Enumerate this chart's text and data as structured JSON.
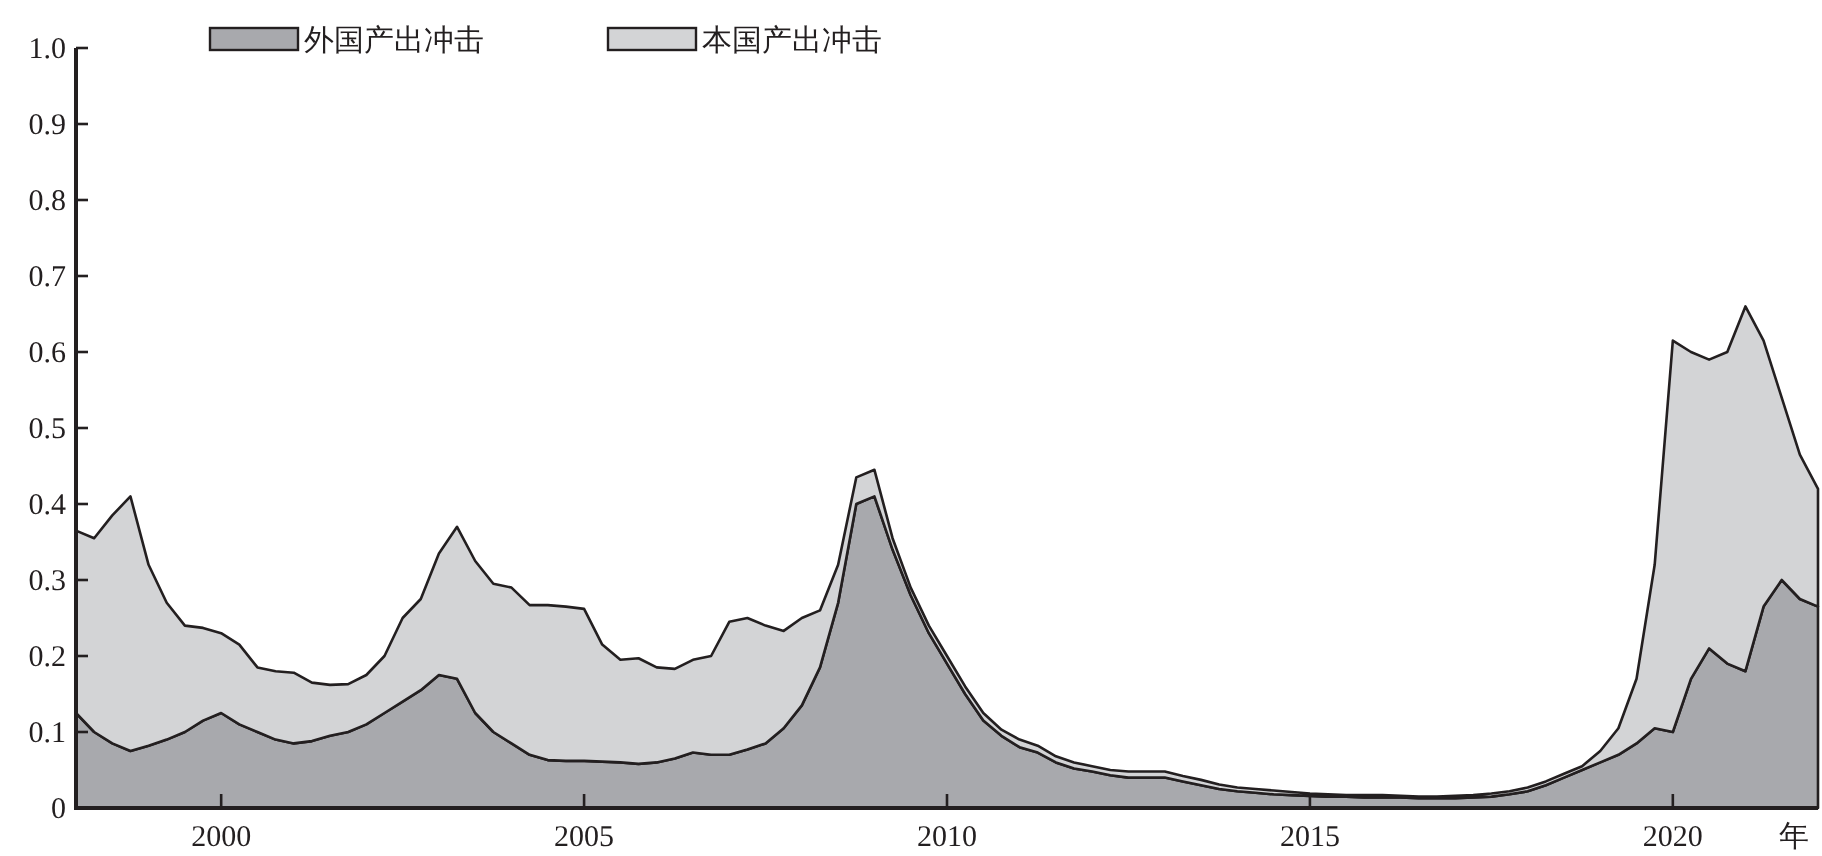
{
  "chart_data": {
    "type": "area",
    "stacked": true,
    "xlabel": "年",
    "legend": "top left",
    "grid": false,
    "xlim": [
      1998,
      2022
    ],
    "xticks": [
      2000,
      2005,
      2010,
      2015,
      2020
    ],
    "ylim": [
      0,
      1
    ],
    "yticks": [
      0,
      0.1,
      0.2,
      0.3,
      0.4,
      0.5,
      0.6,
      0.7,
      0.8,
      0.9,
      {
        "value": 1,
        "label": "1.0"
      }
    ],
    "x": [
      1998,
      1998.25,
      1998.5,
      1998.75,
      1999,
      1999.25,
      1999.5,
      1999.75,
      2000,
      2000.25,
      2000.5,
      2000.75,
      2001,
      2001.25,
      2001.5,
      2001.75,
      2002,
      2002.25,
      2002.5,
      2002.75,
      2003,
      2003.25,
      2003.5,
      2003.75,
      2004,
      2004.25,
      2004.5,
      2004.75,
      2005,
      2005.25,
      2005.5,
      2005.75,
      2006,
      2006.25,
      2006.5,
      2006.75,
      2007,
      2007.25,
      2007.5,
      2007.75,
      2008,
      2008.25,
      2008.5,
      2008.75,
      2009,
      2009.25,
      2009.5,
      2009.75,
      2010,
      2010.25,
      2010.5,
      2010.75,
      2011,
      2011.25,
      2011.5,
      2011.75,
      2012,
      2012.25,
      2012.5,
      2012.75,
      2013,
      2013.25,
      2013.5,
      2013.75,
      2014,
      2014.25,
      2014.5,
      2014.75,
      2015,
      2015.25,
      2015.5,
      2015.75,
      2016,
      2016.25,
      2016.5,
      2016.75,
      2017,
      2017.25,
      2017.5,
      2017.75,
      2018,
      2018.25,
      2018.5,
      2018.75,
      2019,
      2019.25,
      2019.5,
      2019.75,
      2020,
      2020.25,
      2020.5,
      2020.75,
      2021,
      2021.25,
      2021.5,
      2021.75,
      2022
    ],
    "series": [
      {
        "name": "外国产出冲击",
        "color": "#a8a9ad",
        "values": [
          0.125,
          0.1,
          0.085,
          0.075,
          0.082,
          0.09,
          0.1,
          0.115,
          0.125,
          0.11,
          0.1,
          0.09,
          0.085,
          0.088,
          0.095,
          0.1,
          0.11,
          0.125,
          0.14,
          0.155,
          0.175,
          0.17,
          0.125,
          0.1,
          0.085,
          0.07,
          0.063,
          0.062,
          0.062,
          0.061,
          0.06,
          0.058,
          0.06,
          0.065,
          0.073,
          0.07,
          0.07,
          0.077,
          0.085,
          0.105,
          0.135,
          0.185,
          0.27,
          0.4,
          0.41,
          0.34,
          0.28,
          0.23,
          0.19,
          0.15,
          0.115,
          0.095,
          0.08,
          0.073,
          0.06,
          0.052,
          0.048,
          0.043,
          0.04,
          0.04,
          0.04,
          0.035,
          0.03,
          0.025,
          0.022,
          0.02,
          0.018,
          0.017,
          0.016,
          0.015,
          0.015,
          0.014,
          0.014,
          0.014,
          0.013,
          0.013,
          0.013,
          0.014,
          0.015,
          0.018,
          0.022,
          0.03,
          0.04,
          0.05,
          0.06,
          0.07,
          0.085,
          0.105,
          0.1,
          0.17,
          0.21,
          0.19,
          0.18,
          0.265,
          0.3,
          0.275,
          0.265
        ]
      },
      {
        "name": "本国产出冲击",
        "color": "#d3d4d6",
        "values": [
          0.24,
          0.255,
          0.3,
          0.335,
          0.238,
          0.18,
          0.14,
          0.122,
          0.105,
          0.105,
          0.085,
          0.09,
          0.093,
          0.077,
          0.067,
          0.063,
          0.065,
          0.075,
          0.11,
          0.12,
          0.16,
          0.2,
          0.2,
          0.195,
          0.205,
          0.197,
          0.204,
          0.203,
          0.2,
          0.154,
          0.135,
          0.139,
          0.125,
          0.118,
          0.122,
          0.13,
          0.175,
          0.173,
          0.155,
          0.128,
          0.115,
          0.075,
          0.05,
          0.035,
          0.035,
          0.015,
          0.01,
          0.01,
          0.01,
          0.01,
          0.01,
          0.008,
          0.01,
          0.009,
          0.008,
          0.008,
          0.007,
          0.007,
          0.008,
          0.008,
          0.008,
          0.007,
          0.007,
          0.006,
          0.005,
          0.005,
          0.005,
          0.004,
          0.003,
          0.003,
          0.002,
          0.003,
          0.003,
          0.002,
          0.002,
          0.002,
          0.003,
          0.003,
          0.004,
          0.004,
          0.005,
          0.005,
          0.005,
          0.005,
          0.015,
          0.035,
          0.085,
          0.215,
          0.515,
          0.43,
          0.38,
          0.41,
          0.48,
          0.35,
          0.24,
          0.19,
          0.155
        ]
      }
    ]
  }
}
